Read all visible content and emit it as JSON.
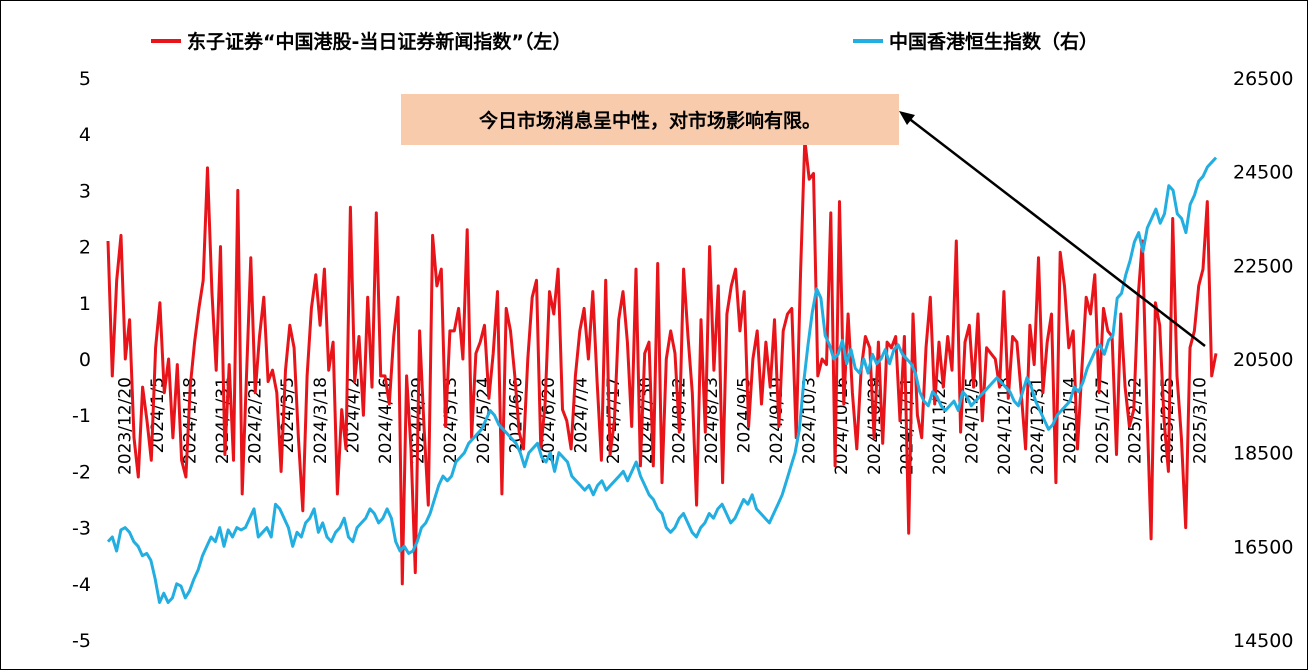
{
  "chart_data": {
    "type": "line",
    "y_left": {
      "min": -5,
      "max": 5,
      "ticks": [
        5,
        4,
        3,
        2,
        1,
        0,
        -1,
        -2,
        -3,
        -4,
        -5
      ]
    },
    "y_right": {
      "min": 14500,
      "max": 26500,
      "ticks": [
        26500,
        24500,
        22500,
        20500,
        18500,
        16500,
        14500
      ]
    },
    "x_tick_labels": [
      "2023/12/20",
      "2024/1/5",
      "2024/1/18",
      "2024/1/31",
      "2024/2/21",
      "2024/3/5",
      "2024/3/18",
      "2024/4/2",
      "2024/4/16",
      "2024/4/29",
      "2024/5/13",
      "2024/5/24",
      "2024/6/6",
      "2024/6/20",
      "2024/7/4",
      "2024/7/17",
      "2024/7/30",
      "2024/8/12",
      "2024/8/23",
      "2024/9/5",
      "2024/9/19",
      "2024/10/3",
      "2024/10/16",
      "2024/10/29",
      "2024/11/11",
      "2024/11/22",
      "2024/12/5",
      "2024/12/18",
      "2024/12/31",
      "2025/1/14",
      "2025/1/27",
      "2025/2/12",
      "2025/2/25",
      "2025/3/10"
    ],
    "legend_position": "top",
    "series": [
      {
        "name": "东子证券“中国港股-当日证券新闻指数”（左）",
        "axis": "left",
        "color": "#e8141a",
        "values": [
          2.1,
          -0.3,
          1.4,
          2.2,
          0,
          0.7,
          -1.4,
          -2.1,
          -0.5,
          -1.1,
          -1.8,
          0.2,
          1.0,
          -0.6,
          0,
          -1.4,
          -0.1,
          -1.8,
          -2.1,
          -0.5,
          0.3,
          0.9,
          1.4,
          3.4,
          1.2,
          -0.2,
          2.0,
          -1.7,
          -0.1,
          -1.8,
          3.0,
          -2.4,
          -0.3,
          1.8,
          -0.6,
          0.4,
          1.1,
          -0.4,
          -0.2,
          -0.6,
          -2.0,
          -0.2,
          0.6,
          0.2,
          -1.4,
          -2.7,
          -0.3,
          0.9,
          1.5,
          0.6,
          1.6,
          -0.2,
          0.3,
          -2.4,
          -0.9,
          -1.6,
          2.7,
          -0.4,
          0.4,
          -1.0,
          1.1,
          -0.5,
          2.6,
          -0.3,
          -0.3,
          -0.8,
          0.4,
          1.1,
          -4.0,
          -0.3,
          -1.6,
          -3.8,
          0.5,
          -1.2,
          -2.6,
          2.2,
          1.3,
          1.6,
          -1.2,
          0.5,
          0.5,
          0.9,
          0,
          2.3,
          -1.4,
          0.1,
          0.3,
          0.6,
          -0.7,
          0.1,
          1.2,
          -2.4,
          0.9,
          0.5,
          -0.3,
          -1.3,
          -1.6,
          0,
          1.1,
          1.4,
          -1.6,
          -0.8,
          1.2,
          0.8,
          1.6,
          -0.9,
          -1.1,
          -1.6,
          -0.3,
          0.5,
          0.9,
          0,
          1.2,
          -0.4,
          -1.8,
          1.4,
          -1.7,
          -1.1,
          0.7,
          1.2,
          0.3,
          -1.2,
          1.6,
          -1.9,
          0.1,
          0.3,
          -1.9,
          1.7,
          -2.2,
          0,
          0.5,
          0.1,
          -1.3,
          1.6,
          0.4,
          -0.6,
          -2.6,
          0.7,
          -1.3,
          2.0,
          -0.2,
          1.3,
          -2.2,
          0.8,
          1.3,
          1.6,
          0.5,
          1.2,
          -1.2,
          0,
          0.5,
          -0.8,
          0.3,
          -0.5,
          0.7,
          -1.2,
          0.5,
          0.8,
          0.9,
          -1.4,
          1.5,
          3.9,
          3.2,
          3.3,
          -0.3,
          0,
          -0.1,
          2.6,
          -1.9,
          2.8,
          -0.8,
          0.8,
          -0.6,
          -1.6,
          -0.2,
          0.4,
          0.2,
          -1.4,
          0.3,
          -1.5,
          0.3,
          0.2,
          0.4,
          -1.1,
          0.4,
          -3.1,
          0.8,
          -1.0,
          -1.4,
          0.2,
          1.1,
          -0.8,
          0.3,
          -0.5,
          0.4,
          -0.2,
          2.1,
          -1.3,
          0.3,
          0.6,
          -0.5,
          0.8,
          -1.1,
          0.2,
          0.1,
          0,
          -0.5,
          1.2,
          -0.7,
          0.4,
          0.3,
          -0.6,
          -1.6,
          0.6,
          -0.1,
          1.8,
          -0.6,
          0.3,
          0.8,
          -2.2,
          1.9,
          1.3,
          0.2,
          0.5,
          -1.6,
          -0.2,
          1.1,
          0.8,
          1.5,
          -0.6,
          0.9,
          0.5,
          0.4,
          -1.7,
          0.8,
          -0.5,
          -1.2,
          -0.9,
          1.1,
          2.1,
          -0.8,
          -3.2,
          1.0,
          0.6,
          -1.1,
          -2.0,
          2.5,
          -0.3,
          -1.4,
          -3.0,
          0.2,
          0.5,
          1.3,
          1.6,
          2.8,
          -0.3,
          0.1
        ]
      },
      {
        "name": "中国香港恒生指数（右）",
        "axis": "right",
        "color": "#22aee0",
        "values": [
          16600,
          16700,
          16400,
          16850,
          16900,
          16800,
          16600,
          16500,
          16300,
          16350,
          16200,
          15800,
          15300,
          15500,
          15300,
          15400,
          15700,
          15650,
          15400,
          15550,
          15800,
          16000,
          16300,
          16500,
          16700,
          16600,
          16900,
          16500,
          16850,
          16700,
          16900,
          16850,
          16900,
          17100,
          17300,
          16700,
          16800,
          16900,
          16700,
          17400,
          17300,
          17100,
          16900,
          16500,
          16800,
          16700,
          17000,
          17100,
          17300,
          16800,
          17000,
          16700,
          16600,
          16800,
          16900,
          17100,
          16700,
          16600,
          16900,
          17000,
          17100,
          17300,
          17200,
          17000,
          17100,
          17300,
          17100,
          16600,
          16400,
          16500,
          16350,
          16400,
          16600,
          16900,
          17000,
          17200,
          17500,
          17800,
          18000,
          17900,
          18000,
          18300,
          18400,
          18500,
          18700,
          18800,
          18900,
          19000,
          19200,
          19400,
          19300,
          19100,
          19000,
          18900,
          18800,
          18700,
          18500,
          18200,
          18500,
          18600,
          18700,
          18400,
          18300,
          18500,
          18100,
          18500,
          18400,
          18300,
          18000,
          17900,
          17800,
          17700,
          17800,
          17600,
          17800,
          17900,
          17700,
          17800,
          17900,
          18000,
          18100,
          17900,
          18100,
          18300,
          18000,
          17800,
          17600,
          17500,
          17300,
          17200,
          16900,
          16800,
          16900,
          17100,
          17200,
          17000,
          16800,
          16700,
          16900,
          17000,
          17200,
          17100,
          17300,
          17400,
          17200,
          17000,
          17100,
          17300,
          17500,
          17400,
          17600,
          17300,
          17200,
          17100,
          17000,
          17200,
          17400,
          17600,
          17900,
          18200,
          18500,
          19000,
          20000,
          20800,
          21500,
          22000,
          21800,
          21000,
          20800,
          20500,
          20600,
          20900,
          20400,
          20700,
          20300,
          20200,
          20500,
          20200,
          20600,
          20400,
          20500,
          20700,
          20400,
          20700,
          20800,
          20600,
          20500,
          20400,
          20200,
          19800,
          19600,
          19500,
          19800,
          19700,
          19500,
          19400,
          19500,
          19600,
          19400,
          19800,
          19700,
          19500,
          19600,
          19700,
          19800,
          19900,
          20000,
          20100,
          20000,
          19900,
          19800,
          19600,
          19500,
          19800,
          20100,
          19900,
          19600,
          19400,
          19200,
          19000,
          19100,
          19300,
          19400,
          19500,
          19600,
          19900,
          19800,
          20000,
          20300,
          20500,
          20700,
          20800,
          20600,
          20900,
          21000,
          21800,
          21900,
          22300,
          22600,
          23000,
          23200,
          22800,
          23300,
          23500,
          23700,
          23400,
          23600,
          24200,
          24100,
          23600,
          23500,
          23200,
          23800,
          24000,
          24300,
          24400,
          24600,
          24700,
          24800
        ]
      }
    ]
  },
  "legend": {
    "left_label": "东子证券“中国港股-当日证券新闻指数”（左）",
    "right_label": "中国香港恒生指数（右）"
  },
  "annotation": {
    "text": "今日市场消息呈中性，对市场影响有限。",
    "box_color": "#f8cbad"
  },
  "colors": {
    "red": "#e8141a",
    "blue": "#22aee0"
  }
}
